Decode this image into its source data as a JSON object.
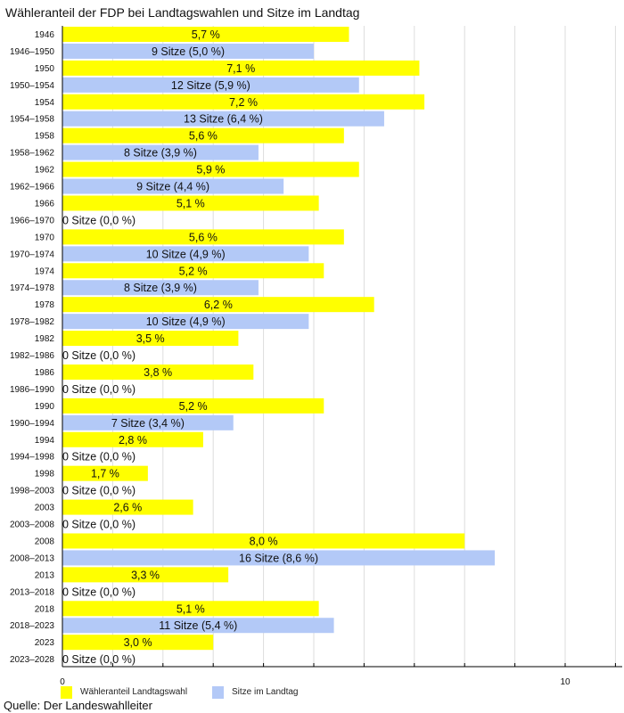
{
  "chart_data": {
    "type": "bar",
    "orientation": "horizontal",
    "title": "Wähleranteil der FDP bei Landtagswahlen und Sitze im Landtag",
    "source": "Quelle: Der Landeswahlleiter",
    "xlim": [
      0,
      11
    ],
    "x_ticks": [
      {
        "value": 0,
        "label": "0"
      },
      {
        "value": 10,
        "label": "10"
      }
    ],
    "grid": true,
    "colors": {
      "votes": "#ffff00",
      "seats": "#b3c9f7"
    },
    "legend": [
      {
        "key": "votes",
        "label": "Wähleranteil Landtagswahl"
      },
      {
        "key": "seats",
        "label": "Sitze im Landtag"
      }
    ],
    "rows": [
      {
        "category": "1946",
        "series": "votes",
        "value": 5.7,
        "label": "5,7 %"
      },
      {
        "category": "1946–1950",
        "series": "seats",
        "value": 5.0,
        "label": "9 Sitze (5,0 %)"
      },
      {
        "category": "1950",
        "series": "votes",
        "value": 7.1,
        "label": "7,1 %"
      },
      {
        "category": "1950–1954",
        "series": "seats",
        "value": 5.9,
        "label": "12 Sitze (5,9 %)"
      },
      {
        "category": "1954",
        "series": "votes",
        "value": 7.2,
        "label": "7,2 %"
      },
      {
        "category": "1954–1958",
        "series": "seats",
        "value": 6.4,
        "label": "13 Sitze (6,4 %)"
      },
      {
        "category": "1958",
        "series": "votes",
        "value": 5.6,
        "label": "5,6 %"
      },
      {
        "category": "1958–1962",
        "series": "seats",
        "value": 3.9,
        "label": "8 Sitze (3,9 %)"
      },
      {
        "category": "1962",
        "series": "votes",
        "value": 5.9,
        "label": "5,9 %"
      },
      {
        "category": "1962–1966",
        "series": "seats",
        "value": 4.4,
        "label": "9 Sitze (4,4 %)"
      },
      {
        "category": "1966",
        "series": "votes",
        "value": 5.1,
        "label": "5,1 %"
      },
      {
        "category": "1966–1970",
        "series": "seats",
        "value": 0,
        "label": "0 Sitze (0,0 %)"
      },
      {
        "category": "1970",
        "series": "votes",
        "value": 5.6,
        "label": "5,6 %"
      },
      {
        "category": "1970–1974",
        "series": "seats",
        "value": 4.9,
        "label": "10 Sitze (4,9 %)"
      },
      {
        "category": "1974",
        "series": "votes",
        "value": 5.2,
        "label": "5,2 %"
      },
      {
        "category": "1974–1978",
        "series": "seats",
        "value": 3.9,
        "label": "8 Sitze (3,9 %)"
      },
      {
        "category": "1978",
        "series": "votes",
        "value": 6.2,
        "label": "6,2 %"
      },
      {
        "category": "1978–1982",
        "series": "seats",
        "value": 4.9,
        "label": "10 Sitze (4,9 %)"
      },
      {
        "category": "1982",
        "series": "votes",
        "value": 3.5,
        "label": "3,5 %"
      },
      {
        "category": "1982–1986",
        "series": "seats",
        "value": 0,
        "label": "0 Sitze (0,0 %)"
      },
      {
        "category": "1986",
        "series": "votes",
        "value": 3.8,
        "label": "3,8 %"
      },
      {
        "category": "1986–1990",
        "series": "seats",
        "value": 0,
        "label": "0 Sitze (0,0 %)"
      },
      {
        "category": "1990",
        "series": "votes",
        "value": 5.2,
        "label": "5,2 %"
      },
      {
        "category": "1990–1994",
        "series": "seats",
        "value": 3.4,
        "label": "7 Sitze (3,4 %)"
      },
      {
        "category": "1994",
        "series": "votes",
        "value": 2.8,
        "label": "2,8 %"
      },
      {
        "category": "1994–1998",
        "series": "seats",
        "value": 0,
        "label": "0 Sitze (0,0 %)"
      },
      {
        "category": "1998",
        "series": "votes",
        "value": 1.7,
        "label": "1,7 %"
      },
      {
        "category": "1998–2003",
        "series": "seats",
        "value": 0,
        "label": "0 Sitze (0,0 %)"
      },
      {
        "category": "2003",
        "series": "votes",
        "value": 2.6,
        "label": "2,6 %"
      },
      {
        "category": "2003–2008",
        "series": "seats",
        "value": 0,
        "label": "0 Sitze (0,0 %)"
      },
      {
        "category": "2008",
        "series": "votes",
        "value": 8.0,
        "label": "8,0 %"
      },
      {
        "category": "2008–2013",
        "series": "seats",
        "value": 8.6,
        "label": "16 Sitze (8,6 %)"
      },
      {
        "category": "2013",
        "series": "votes",
        "value": 3.3,
        "label": "3,3 %"
      },
      {
        "category": "2013–2018",
        "series": "seats",
        "value": 0,
        "label": "0 Sitze (0,0 %)"
      },
      {
        "category": "2018",
        "series": "votes",
        "value": 5.1,
        "label": "5,1 %"
      },
      {
        "category": "2018–2023",
        "series": "seats",
        "value": 5.4,
        "label": "11 Sitze (5,4 %)"
      },
      {
        "category": "2023",
        "series": "votes",
        "value": 3.0,
        "label": "3,0 %"
      },
      {
        "category": "2023–2028",
        "series": "seats",
        "value": 0,
        "label": "0 Sitze (0,0 %)"
      }
    ]
  }
}
